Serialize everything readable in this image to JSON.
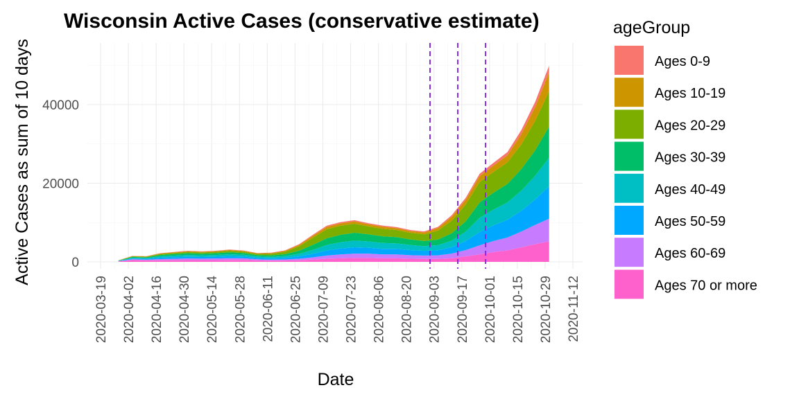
{
  "chart_data": {
    "type": "area",
    "stacked": true,
    "title": "Wisconsin Active Cases (conservative estimate)",
    "xlabel": "Date",
    "ylabel": "Active Cases as sum of 10 days",
    "x_ticks": [
      "2020-03-19",
      "2020-04-02",
      "2020-04-16",
      "2020-04-30",
      "2020-05-14",
      "2020-05-28",
      "2020-06-11",
      "2020-06-25",
      "2020-07-09",
      "2020-07-23",
      "2020-08-06",
      "2020-08-20",
      "2020-09-03",
      "2020-09-17",
      "2020-10-01",
      "2020-10-15",
      "2020-10-29",
      "2020-11-12"
    ],
    "y_ticks": [
      0,
      20000,
      40000
    ],
    "y_tick_labels": [
      "0",
      "20000",
      "40000"
    ],
    "xlim": [
      "2020-03-19",
      "2020-11-12"
    ],
    "ylim": [
      0,
      55000
    ],
    "vertical_lines": [
      "2020-09-01",
      "2020-09-15",
      "2020-09-29"
    ],
    "legend": {
      "title": "ageGroup",
      "placement": "right"
    },
    "x": [
      "2020-03-28",
      "2020-04-04",
      "2020-04-11",
      "2020-04-18",
      "2020-04-25",
      "2020-05-02",
      "2020-05-09",
      "2020-05-16",
      "2020-05-23",
      "2020-05-30",
      "2020-06-06",
      "2020-06-13",
      "2020-06-20",
      "2020-06-27",
      "2020-07-04",
      "2020-07-11",
      "2020-07-18",
      "2020-07-25",
      "2020-08-01",
      "2020-08-08",
      "2020-08-15",
      "2020-08-22",
      "2020-08-29",
      "2020-09-05",
      "2020-09-12",
      "2020-09-19",
      "2020-09-26",
      "2020-10-03",
      "2020-10-10",
      "2020-10-17",
      "2020-10-24",
      "2020-10-31"
    ],
    "series": [
      {
        "name": "Ages 70 or more",
        "color": "#FF61CC",
        "values": [
          100,
          450,
          380,
          400,
          420,
          450,
          430,
          450,
          480,
          500,
          380,
          300,
          320,
          400,
          600,
          800,
          900,
          1000,
          1000,
          900,
          900,
          800,
          750,
          750,
          900,
          1400,
          1900,
          2500,
          2900,
          3700,
          4500,
          5200
        ]
      },
      {
        "name": "Ages 60-69",
        "color": "#C77CFF",
        "values": [
          50,
          200,
          180,
          300,
          360,
          400,
          380,
          400,
          450,
          400,
          280,
          250,
          300,
          400,
          550,
          800,
          1000,
          1100,
          1100,
          1000,
          1000,
          900,
          850,
          900,
          1200,
          1600,
          2300,
          2800,
          3300,
          4000,
          4900,
          5800
        ]
      },
      {
        "name": "Ages 50-59",
        "color": "#00A9FF",
        "values": [
          50,
          200,
          200,
          350,
          400,
          450,
          430,
          450,
          500,
          450,
          350,
          350,
          400,
          600,
          900,
          1300,
          1500,
          1600,
          1500,
          1400,
          1400,
          1300,
          1200,
          1300,
          1600,
          2300,
          3400,
          4000,
          4500,
          5300,
          6500,
          8200
        ]
      },
      {
        "name": "Ages 40-49",
        "color": "#00BFC4",
        "values": [
          50,
          200,
          200,
          350,
          400,
          450,
          420,
          450,
          500,
          450,
          350,
          350,
          450,
          650,
          1000,
          1400,
          1600,
          1700,
          1600,
          1500,
          1400,
          1300,
          1200,
          1300,
          1700,
          2400,
          3600,
          4000,
          4400,
          5100,
          6000,
          7300
        ]
      },
      {
        "name": "Ages 30-39",
        "color": "#00BE67",
        "values": [
          50,
          200,
          200,
          350,
          400,
          450,
          420,
          450,
          500,
          450,
          350,
          400,
          500,
          800,
          1300,
          1700,
          1900,
          2000,
          1800,
          1700,
          1600,
          1400,
          1300,
          1400,
          1900,
          2600,
          3900,
          4300,
          4700,
          5500,
          6500,
          7900
        ]
      },
      {
        "name": "Ages 20-29",
        "color": "#7CAE00",
        "values": [
          50,
          150,
          150,
          250,
          300,
          350,
          330,
          350,
          400,
          350,
          300,
          400,
          600,
          1100,
          1800,
          2300,
          2300,
          2300,
          2000,
          1900,
          1800,
          1700,
          1700,
          2300,
          3200,
          4300,
          5200,
          5300,
          5500,
          6300,
          7500,
          9000
        ]
      },
      {
        "name": "Ages 10-19",
        "color": "#CD9600",
        "values": [
          30,
          80,
          80,
          120,
          150,
          170,
          160,
          170,
          190,
          180,
          150,
          180,
          230,
          350,
          500,
          600,
          600,
          600,
          550,
          550,
          500,
          450,
          480,
          650,
          1000,
          1200,
          1500,
          1600,
          1800,
          2600,
          3500,
          4800
        ]
      },
      {
        "name": "Ages 0-9",
        "color": "#F8766D",
        "values": [
          20,
          50,
          50,
          80,
          90,
          100,
          90,
          100,
          110,
          100,
          90,
          100,
          120,
          180,
          250,
          300,
          300,
          300,
          280,
          280,
          260,
          250,
          250,
          300,
          400,
          500,
          600,
          700,
          800,
          1000,
          1300,
          1700
        ]
      }
    ]
  }
}
